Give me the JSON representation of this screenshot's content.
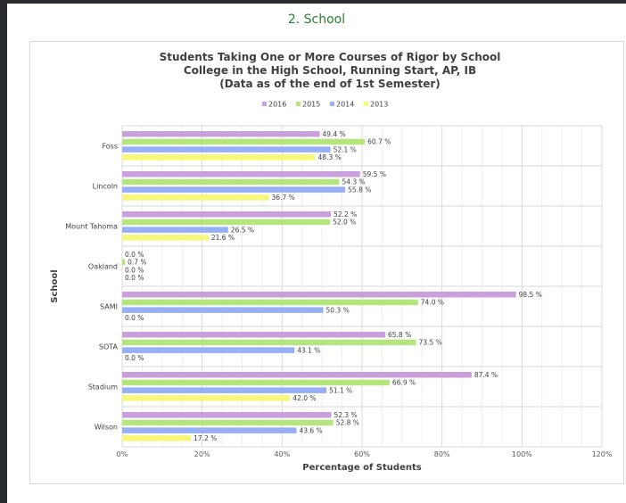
{
  "page": {
    "heading": "2. School"
  },
  "chart_data": {
    "type": "bar",
    "orientation": "horizontal",
    "title_lines": [
      "Students Taking One or More Courses of Rigor by School",
      "College in the High School, Running Start, AP, IB",
      "(Data as of the end of 1st Semester)"
    ],
    "xlabel": "Percentage of Students",
    "ylabel": "School",
    "xlim": [
      0,
      120
    ],
    "x_ticks": [
      "0%",
      "20%",
      "40%",
      "60%",
      "80%",
      "100%",
      "120%"
    ],
    "grid": true,
    "legend_position": "top",
    "categories": [
      "Foss",
      "Lincoln",
      "Mount Tahoma",
      "Oakland",
      "SAMI",
      "SOTA",
      "Stadium",
      "Wilson"
    ],
    "series": [
      {
        "name": "2016",
        "color": "#c9a0dc",
        "values": [
          49.4,
          59.5,
          52.2,
          0.0,
          98.5,
          65.8,
          87.4,
          52.3
        ],
        "labels": [
          "49.4 %",
          "59.5 %",
          "52.2 %",
          "0.0 %",
          "98.5 %",
          "65.8 %",
          "87.4 %",
          "52.3 %"
        ]
      },
      {
        "name": "2015",
        "color": "#b4e67d",
        "values": [
          60.7,
          54.3,
          52.0,
          0.7,
          74.0,
          73.5,
          66.9,
          52.8
        ],
        "labels": [
          "60.7 %",
          "54.3 %",
          "52.0 %",
          "0.7 %",
          "74.0 %",
          "73.5 %",
          "66.9 %",
          "52.8 %"
        ]
      },
      {
        "name": "2014",
        "color": "#97aff5",
        "values": [
          52.1,
          55.8,
          26.5,
          0.0,
          50.3,
          43.1,
          51.1,
          43.6
        ],
        "labels": [
          "52.1 %",
          "55.8 %",
          "26.5 %",
          "0.0 %",
          "50.3 %",
          "43.1 %",
          "51.1 %",
          "43.6 %"
        ]
      },
      {
        "name": "2013",
        "color": "#f7f77a",
        "values": [
          48.3,
          36.7,
          21.6,
          0.0,
          0.0,
          0.0,
          42.0,
          17.2
        ],
        "labels": [
          "48.3 %",
          "36.7 %",
          "21.6 %",
          "0.0 %",
          "0.0 %",
          "0.0 %",
          "42.0 %",
          "17.2 %"
        ]
      }
    ]
  }
}
